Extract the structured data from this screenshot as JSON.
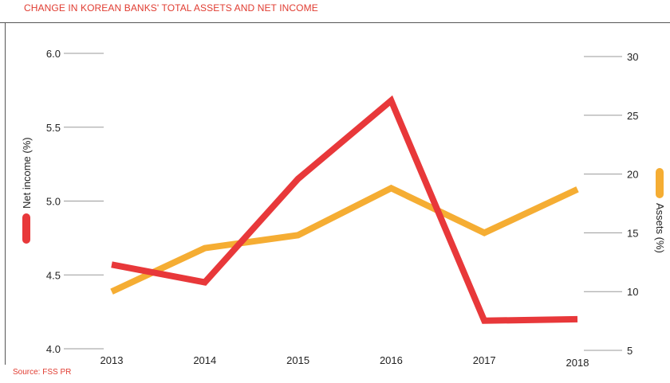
{
  "title": "CHANGE IN KOREAN BANKS' TOTAL ASSETS AND NET INCOME",
  "source": "Source: FSS PR",
  "colors": {
    "net_income": "#e8383a",
    "assets": "#f5ad33",
    "text": "#222222",
    "accent": "#e03c31"
  },
  "chart_data": {
    "type": "line",
    "x": [
      "2013",
      "2014",
      "2015",
      "2016",
      "2017",
      "2018"
    ],
    "ylabel_left": "Net income (%)",
    "ylabel_right": "Assets (%)",
    "ylim_left": [
      4.0,
      6.0
    ],
    "yticks_left": [
      "4.0",
      "4.5",
      "5.0",
      "5.5",
      "6.0"
    ],
    "ylim_right": [
      5,
      30
    ],
    "yticks_right": [
      "5",
      "10",
      "15",
      "20",
      "25",
      "30"
    ],
    "series": [
      {
        "name": "Net income (%)",
        "axis": "left",
        "color": "#e8383a",
        "values": [
          4.57,
          4.45,
          5.15,
          5.68,
          4.19,
          4.2
        ]
      },
      {
        "name": "Assets (%)",
        "axis": "right",
        "color": "#f5ad33",
        "values": [
          10,
          13.7,
          14.8,
          18.8,
          15,
          18.7
        ]
      }
    ]
  }
}
